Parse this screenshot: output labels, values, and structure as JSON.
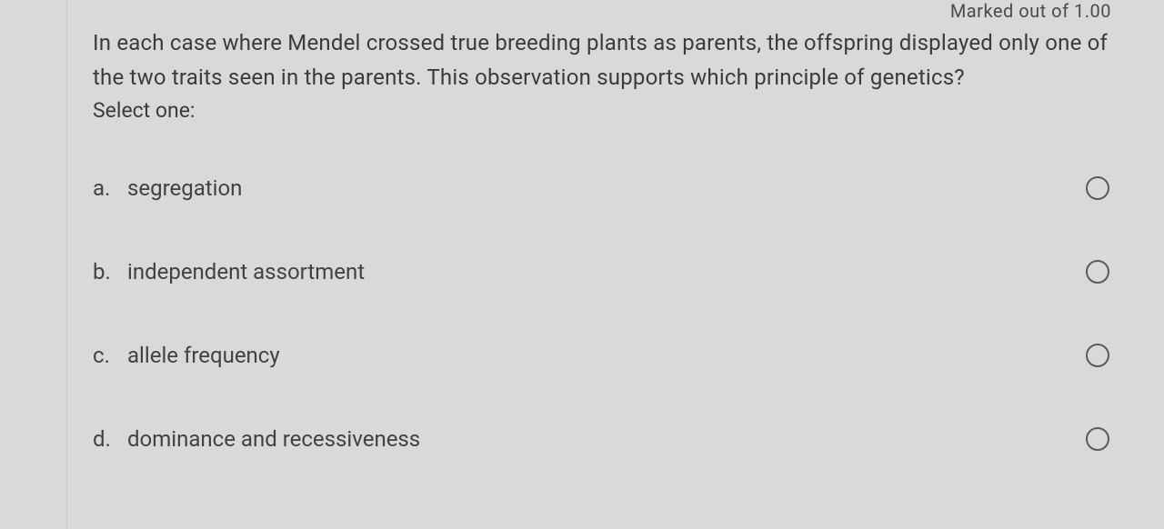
{
  "colors": {
    "background": "#d8d9da",
    "text_primary": "#3a3b3c",
    "text_option": "#414243",
    "radio_border": "#5a5b5c",
    "margin_border": "rgba(0,0,0,0.08)"
  },
  "typography": {
    "question_fontsize": 24,
    "question_lineheight": 38,
    "option_fontsize": 24,
    "mark_fontsize": 20
  },
  "meta": {
    "mark_text": "Marked out of 1.00"
  },
  "question": {
    "text": "In each case where Mendel crossed true breeding plants as parents, the offspring displayed only one of the two traits seen in the parents. This observation supports which principle of genetics?",
    "prompt": "Select one:"
  },
  "options": [
    {
      "letter": "a.",
      "text": "segregation",
      "selected": false
    },
    {
      "letter": "b.",
      "text": "independent assortment",
      "selected": false
    },
    {
      "letter": "c.",
      "text": "allele frequency",
      "selected": false
    },
    {
      "letter": "d.",
      "text": "dominance and recessiveness",
      "selected": false
    }
  ]
}
